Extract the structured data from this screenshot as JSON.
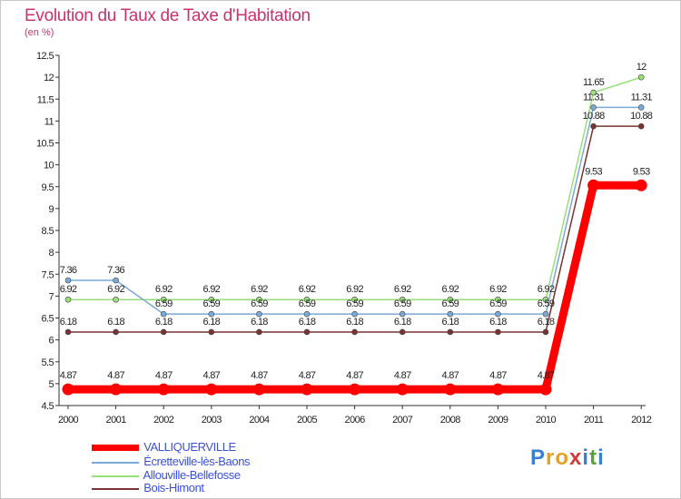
{
  "header": {
    "title": "Evolution du Taux de Taxe d'Habitation",
    "unit": "(en %)"
  },
  "logo": {
    "text": "Proxiti",
    "letters": [
      "P",
      "r",
      "o",
      "x",
      "i",
      "t",
      "i"
    ],
    "colors": [
      "#3a7fd0",
      "#e8a020",
      "#e8a020",
      "#d03a3a",
      "#3a7fd0",
      "#5aa03a",
      "#3a7fd0"
    ]
  },
  "chart_data": {
    "type": "line",
    "title": "Evolution du Taux de Taxe d'Habitation",
    "ylabel": "(en %)",
    "xlabel": "",
    "ylim": [
      4.5,
      12.5
    ],
    "y_ticks": [
      "4.5",
      "5",
      "5.5",
      "6",
      "6.5",
      "7",
      "7.5",
      "8",
      "8.5",
      "9",
      "9.5",
      "10",
      "10.5",
      "11",
      "11.5",
      "12",
      "12.5"
    ],
    "x": [
      "2000",
      "2001",
      "2002",
      "2003",
      "2004",
      "2005",
      "2006",
      "2007",
      "2008",
      "2009",
      "2010",
      "2011",
      "2012"
    ],
    "grid": false,
    "series": [
      {
        "name": "VALLIQUERVILLE",
        "color": "#ff0000",
        "values": [
          4.87,
          4.87,
          4.87,
          4.87,
          4.87,
          4.87,
          4.87,
          4.87,
          4.87,
          4.87,
          4.87,
          9.53,
          9.53
        ],
        "labels": [
          "4.87",
          "4.87",
          "4.87",
          "4.87",
          "4.87",
          "4.87",
          "4.87",
          "4.87",
          "4.87",
          "4.87",
          "4.87",
          "9.53",
          "9.53"
        ]
      },
      {
        "name": "Écretteville-lès-Baons",
        "color": "#7aaad8",
        "values": [
          7.36,
          7.36,
          6.59,
          6.59,
          6.59,
          6.59,
          6.59,
          6.59,
          6.59,
          6.59,
          6.59,
          11.31,
          11.31
        ],
        "labels": [
          "7.36",
          "7.36",
          "6.59",
          "6.59",
          "6.59",
          "6.59",
          "6.59",
          "6.59",
          "6.59",
          "6.59",
          "6.59",
          "11.31",
          "11.31"
        ]
      },
      {
        "name": "Allouville-Bellefosse",
        "color": "#99e07a",
        "values": [
          6.92,
          6.92,
          6.92,
          6.92,
          6.92,
          6.92,
          6.92,
          6.92,
          6.92,
          6.92,
          6.92,
          11.65,
          12
        ],
        "labels": [
          "6.92",
          "6.92",
          "6.92",
          "6.92",
          "6.92",
          "6.92",
          "6.92",
          "6.92",
          "6.92",
          "6.92",
          "6.92",
          "11.65",
          "12"
        ]
      },
      {
        "name": "Bois-Himont",
        "color": "#7a3232",
        "values": [
          6.18,
          6.18,
          6.18,
          6.18,
          6.18,
          6.18,
          6.18,
          6.18,
          6.18,
          6.18,
          6.18,
          10.88,
          10.88
        ],
        "labels": [
          "6.18",
          "6.18",
          "6.18",
          "6.18",
          "6.18",
          "6.18",
          "6.18",
          "6.18",
          "6.18",
          "6.18",
          "6.18",
          "10.88",
          "10.88"
        ]
      }
    ],
    "legend": "bottom-left"
  }
}
